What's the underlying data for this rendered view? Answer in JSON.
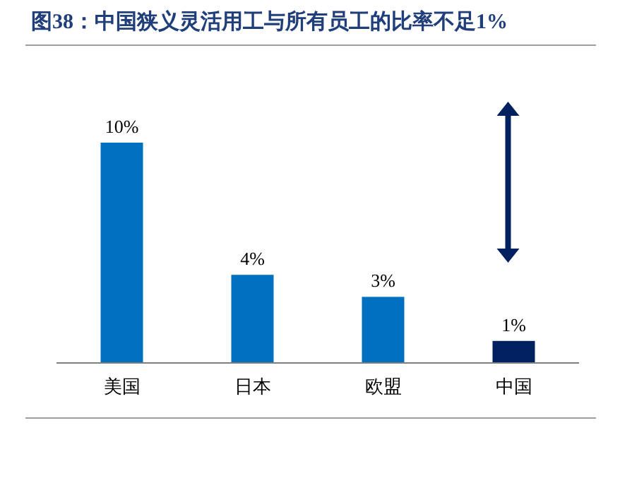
{
  "chart_data": {
    "type": "bar",
    "title": "图38：中国狭义灵活用工与所有员工的比率不足1%",
    "categories": [
      "美国",
      "日本",
      "欧盟",
      "中国"
    ],
    "values": [
      10,
      4,
      3,
      1
    ],
    "colors": [
      "#0070c0",
      "#0070c0",
      "#0070c0",
      "#002060"
    ],
    "value_labels": [
      "10%",
      "4%",
      "3%",
      "1%"
    ]
  }
}
